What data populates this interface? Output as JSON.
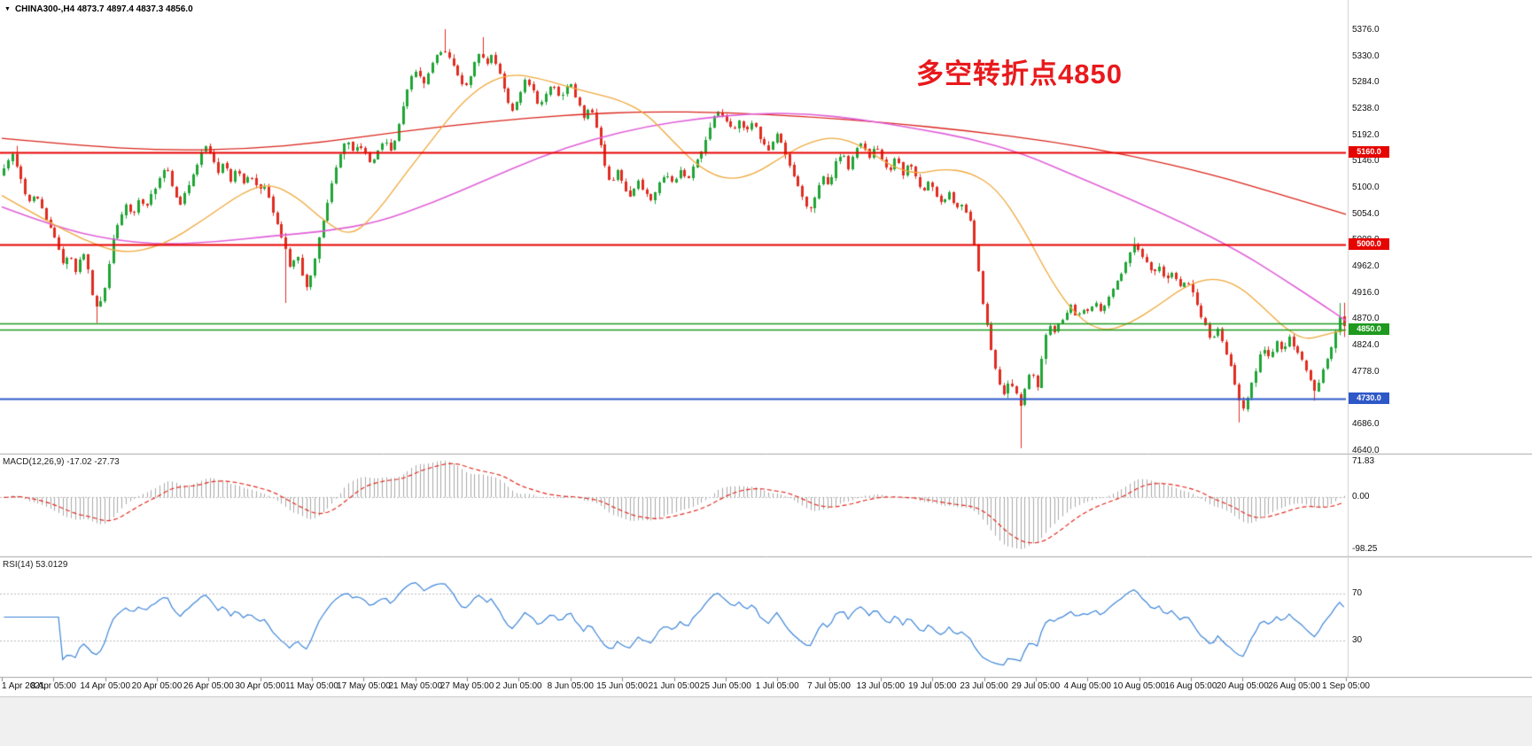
{
  "header": {
    "collapse_icon": "▼",
    "symbol_info": "CHINA300-,H4 4873.7 4897.4 4837.3 4856.0"
  },
  "annotation": {
    "text": "多空转折点4850"
  },
  "price_scale": {
    "labels": [
      "5376.0",
      "5330.0",
      "5284.0",
      "5238.0",
      "5192.0",
      "5146.0",
      "5100.0",
      "5054.0",
      "5008.0",
      "4962.0",
      "4916.0",
      "4870.0",
      "4824.0",
      "4778.0",
      "4732.0",
      "4686.0",
      "4640.0"
    ]
  },
  "hlines": [
    {
      "price": 5160.0,
      "label": "5160.0",
      "color": "#e60400",
      "width": 2
    },
    {
      "price": 5000.0,
      "label": "5000.0",
      "color": "#e60400",
      "width": 2
    },
    {
      "price": 4862.0,
      "label": null,
      "color": "#1f9a1f",
      "width": 1.4
    },
    {
      "price": 4850.0,
      "label": "4850.0",
      "color": "#1f9a1f",
      "width": 1.4
    },
    {
      "price": 4730.0,
      "label": "4730.0",
      "color": "#2e58c8",
      "width": 2
    }
  ],
  "macd_panel": {
    "label": "MACD(12,26,9) -17.02 -27.73",
    "scale_labels": [
      "71.83",
      "0.00",
      "-98.25"
    ]
  },
  "rsi_panel": {
    "label": "RSI(14) 53.0129",
    "level_labels": [
      "70",
      "30"
    ],
    "levels": [
      70,
      30
    ]
  },
  "time_axis": {
    "labels": [
      "1 Apr 2021",
      "8 Apr 05:00",
      "14 Apr 05:00",
      "20 Apr 05:00",
      "26 Apr 05:00",
      "30 Apr 05:00",
      "11 May 05:00",
      "17 May 05:00",
      "21 May 05:00",
      "27 May 05:00",
      "2 Jun 05:00",
      "8 Jun 05:00",
      "15 Jun 05:00",
      "21 Jun 05:00",
      "25 Jun 05:00",
      "1 Jul 05:00",
      "7 Jul 05:00",
      "13 Jul 05:00",
      "19 Jul 05:00",
      "23 Jul 05:00",
      "29 Jul 05:00",
      "4 Aug 05:00",
      "10 Aug 05:00",
      "16 Aug 05:00",
      "20 Aug 05:00",
      "26 Aug 05:00",
      "1 Sep 05:00"
    ]
  },
  "colors": {
    "bull": "#1fa535",
    "bear": "#e02c21",
    "ma_slow_red": "#d9241b",
    "ma_fast_orange": "#efa93d",
    "ma_medium_magenta": "#e060d8",
    "macd_hist": "#a9a9a9",
    "macd_signal": "#e02c21",
    "rsi_line": "#3d85d8",
    "level_dash": "#b9b9b9",
    "separator": "#a6a6a6",
    "annotation": "#e8191c",
    "footer_bg": "#f0f0f0",
    "axis_text": "#111111"
  },
  "chart_data": {
    "type": "candlestick",
    "symbol": "CHINA300-",
    "timeframe": "H4",
    "quote": {
      "open": 4873.7,
      "high": 4897.4,
      "low": 4837.3,
      "close": 4856.0
    },
    "title_note": "多空转折点4850",
    "x_range": {
      "start": "1 Apr 2021",
      "end": "1 Sep 2021 05:00"
    },
    "price_range": {
      "min": 4635,
      "max": 5396
    },
    "horizontal_levels": [
      5160.0,
      5000.0,
      4862.0,
      4850.0,
      4730.0
    ],
    "candle_count": 320,
    "close_path": [
      [
        0.0,
        5120
      ],
      [
        0.004,
        5148
      ],
      [
        0.008,
        5160
      ],
      [
        0.012,
        5128
      ],
      [
        0.016,
        5095
      ],
      [
        0.02,
        5075
      ],
      [
        0.025,
        5085
      ],
      [
        0.03,
        5060
      ],
      [
        0.035,
        5030
      ],
      [
        0.04,
        5005
      ],
      [
        0.045,
        4965
      ],
      [
        0.05,
        4985
      ],
      [
        0.055,
        4950
      ],
      [
        0.06,
        4990
      ],
      [
        0.065,
        4945
      ],
      [
        0.068,
        4895
      ],
      [
        0.072,
        4885
      ],
      [
        0.077,
        4925
      ],
      [
        0.082,
        5000
      ],
      [
        0.087,
        5045
      ],
      [
        0.092,
        5070
      ],
      [
        0.097,
        5050
      ],
      [
        0.102,
        5080
      ],
      [
        0.107,
        5060
      ],
      [
        0.112,
        5092
      ],
      [
        0.117,
        5112
      ],
      [
        0.122,
        5135
      ],
      [
        0.127,
        5100
      ],
      [
        0.132,
        5062
      ],
      [
        0.137,
        5092
      ],
      [
        0.142,
        5122
      ],
      [
        0.147,
        5152
      ],
      [
        0.152,
        5172
      ],
      [
        0.156,
        5155
      ],
      [
        0.16,
        5122
      ],
      [
        0.165,
        5142
      ],
      [
        0.17,
        5112
      ],
      [
        0.175,
        5132
      ],
      [
        0.18,
        5102
      ],
      [
        0.185,
        5122
      ],
      [
        0.19,
        5095
      ],
      [
        0.196,
        5105
      ],
      [
        0.201,
        5062
      ],
      [
        0.206,
        5022
      ],
      [
        0.211,
        4988
      ],
      [
        0.215,
        4952
      ],
      [
        0.219,
        4985
      ],
      [
        0.223,
        4952
      ],
      [
        0.227,
        4922
      ],
      [
        0.231,
        4958
      ],
      [
        0.236,
        5010
      ],
      [
        0.241,
        5062
      ],
      [
        0.246,
        5112
      ],
      [
        0.251,
        5152
      ],
      [
        0.256,
        5182
      ],
      [
        0.261,
        5162
      ],
      [
        0.265,
        5175
      ],
      [
        0.27,
        5158
      ],
      [
        0.275,
        5138
      ],
      [
        0.28,
        5162
      ],
      [
        0.285,
        5182
      ],
      [
        0.29,
        5162
      ],
      [
        0.295,
        5205
      ],
      [
        0.3,
        5262
      ],
      [
        0.305,
        5292
      ],
      [
        0.309,
        5302
      ],
      [
        0.314,
        5278
      ],
      [
        0.319,
        5312
      ],
      [
        0.324,
        5332
      ],
      [
        0.329,
        5342
      ],
      [
        0.334,
        5318
      ],
      [
        0.339,
        5298
      ],
      [
        0.344,
        5272
      ],
      [
        0.348,
        5292
      ],
      [
        0.352,
        5322
      ],
      [
        0.356,
        5342
      ],
      [
        0.36,
        5312
      ],
      [
        0.365,
        5332
      ],
      [
        0.37,
        5298
      ],
      [
        0.375,
        5258
      ],
      [
        0.38,
        5232
      ],
      [
        0.385,
        5262
      ],
      [
        0.39,
        5292
      ],
      [
        0.395,
        5268
      ],
      [
        0.4,
        5240
      ],
      [
        0.405,
        5262
      ],
      [
        0.41,
        5282
      ],
      [
        0.415,
        5252
      ],
      [
        0.419,
        5272
      ],
      [
        0.423,
        5282
      ],
      [
        0.428,
        5252
      ],
      [
        0.433,
        5222
      ],
      [
        0.438,
        5242
      ],
      [
        0.443,
        5198
      ],
      [
        0.448,
        5142
      ],
      [
        0.453,
        5102
      ],
      [
        0.458,
        5132
      ],
      [
        0.462,
        5102
      ],
      [
        0.468,
        5082
      ],
      [
        0.473,
        5112
      ],
      [
        0.478,
        5092
      ],
      [
        0.483,
        5072
      ],
      [
        0.488,
        5102
      ],
      [
        0.494,
        5122
      ],
      [
        0.5,
        5102
      ],
      [
        0.505,
        5132
      ],
      [
        0.51,
        5112
      ],
      [
        0.515,
        5142
      ],
      [
        0.52,
        5162
      ],
      [
        0.525,
        5192
      ],
      [
        0.53,
        5222
      ],
      [
        0.534,
        5232
      ],
      [
        0.538,
        5218
      ],
      [
        0.544,
        5198
      ],
      [
        0.549,
        5215
      ],
      [
        0.554,
        5195
      ],
      [
        0.559,
        5212
      ],
      [
        0.564,
        5185
      ],
      [
        0.57,
        5165
      ],
      [
        0.577,
        5192
      ],
      [
        0.581,
        5168
      ],
      [
        0.586,
        5138
      ],
      [
        0.591,
        5108
      ],
      [
        0.596,
        5078
      ],
      [
        0.601,
        5058
      ],
      [
        0.606,
        5092
      ],
      [
        0.611,
        5122
      ],
      [
        0.615,
        5102
      ],
      [
        0.62,
        5142
      ],
      [
        0.625,
        5162
      ],
      [
        0.63,
        5132
      ],
      [
        0.635,
        5162
      ],
      [
        0.64,
        5182
      ],
      [
        0.645,
        5152
      ],
      [
        0.65,
        5172
      ],
      [
        0.654,
        5148
      ],
      [
        0.66,
        5128
      ],
      [
        0.665,
        5152
      ],
      [
        0.67,
        5122
      ],
      [
        0.675,
        5142
      ],
      [
        0.68,
        5112
      ],
      [
        0.685,
        5092
      ],
      [
        0.69,
        5112
      ],
      [
        0.695,
        5088
      ],
      [
        0.7,
        5068
      ],
      [
        0.705,
        5092
      ],
      [
        0.71,
        5058
      ],
      [
        0.715,
        5072
      ],
      [
        0.72,
        5042
      ],
      [
        0.725,
        4982
      ],
      [
        0.729,
        4902
      ],
      [
        0.733,
        4858
      ],
      [
        0.737,
        4802
      ],
      [
        0.741,
        4758
      ],
      [
        0.745,
        4738
      ],
      [
        0.75,
        4762
      ],
      [
        0.754,
        4742
      ],
      [
        0.758,
        4718
      ],
      [
        0.762,
        4752
      ],
      [
        0.766,
        4782
      ],
      [
        0.77,
        4742
      ],
      [
        0.774,
        4812
      ],
      [
        0.778,
        4862
      ],
      [
        0.782,
        4845
      ],
      [
        0.786,
        4862
      ],
      [
        0.79,
        4872
      ],
      [
        0.795,
        4892
      ],
      [
        0.8,
        4868
      ],
      [
        0.804,
        4888
      ],
      [
        0.808,
        4878
      ],
      [
        0.813,
        4898
      ],
      [
        0.818,
        4882
      ],
      [
        0.823,
        4908
      ],
      [
        0.828,
        4928
      ],
      [
        0.833,
        4952
      ],
      [
        0.838,
        4982
      ],
      [
        0.843,
        5002
      ],
      [
        0.846,
        4988
      ],
      [
        0.851,
        4968
      ],
      [
        0.856,
        4948
      ],
      [
        0.861,
        4962
      ],
      [
        0.866,
        4938
      ],
      [
        0.871,
        4952
      ],
      [
        0.876,
        4928
      ],
      [
        0.881,
        4938
      ],
      [
        0.885,
        4918
      ],
      [
        0.89,
        4888
      ],
      [
        0.895,
        4858
      ],
      [
        0.9,
        4828
      ],
      [
        0.905,
        4852
      ],
      [
        0.91,
        4818
      ],
      [
        0.915,
        4778
      ],
      [
        0.919,
        4732
      ],
      [
        0.923,
        4712
      ],
      [
        0.928,
        4742
      ],
      [
        0.933,
        4782
      ],
      [
        0.938,
        4822
      ],
      [
        0.943,
        4798
      ],
      [
        0.948,
        4832
      ],
      [
        0.953,
        4812
      ],
      [
        0.958,
        4842
      ],
      [
        0.962,
        4818
      ],
      [
        0.967,
        4798
      ],
      [
        0.972,
        4768
      ],
      [
        0.977,
        4744
      ],
      [
        0.982,
        4772
      ],
      [
        0.987,
        4802
      ],
      [
        0.992,
        4842
      ],
      [
        0.997,
        4884
      ],
      [
        1.0,
        4856
      ]
    ],
    "spikes": [
      {
        "x": 0.008,
        "price": 5172
      },
      {
        "x": 0.07,
        "price": 4862
      },
      {
        "x": 0.211,
        "price": 4897
      },
      {
        "x": 0.329,
        "price": 5376
      },
      {
        "x": 0.356,
        "price": 5362
      },
      {
        "x": 0.758,
        "price": 4643
      },
      {
        "x": 0.843,
        "price": 5012
      },
      {
        "x": 0.923,
        "price": 4688
      },
      {
        "x": 0.977,
        "price": 4726
      },
      {
        "x": 0.997,
        "price": 4897
      }
    ],
    "moving_averages": [
      {
        "name": "ma-slow",
        "color_key": "ma_slow_red",
        "points": [
          [
            0,
            5185
          ],
          [
            0.06,
            5172
          ],
          [
            0.12,
            5164
          ],
          [
            0.18,
            5166
          ],
          [
            0.24,
            5178
          ],
          [
            0.3,
            5198
          ],
          [
            0.36,
            5214
          ],
          [
            0.42,
            5226
          ],
          [
            0.48,
            5232
          ],
          [
            0.54,
            5230
          ],
          [
            0.6,
            5223
          ],
          [
            0.66,
            5212
          ],
          [
            0.72,
            5198
          ],
          [
            0.78,
            5180
          ],
          [
            0.84,
            5155
          ],
          [
            0.9,
            5122
          ],
          [
            0.95,
            5088
          ],
          [
            1.0,
            5052
          ]
        ]
      },
      {
        "name": "ma-medium",
        "color_key": "ma_medium_magenta",
        "points": [
          [
            0,
            5065
          ],
          [
            0.04,
            5030
          ],
          [
            0.08,
            5008
          ],
          [
            0.12,
            4999
          ],
          [
            0.16,
            5004
          ],
          [
            0.2,
            5014
          ],
          [
            0.24,
            5022
          ],
          [
            0.28,
            5038
          ],
          [
            0.32,
            5072
          ],
          [
            0.36,
            5112
          ],
          [
            0.4,
            5152
          ],
          [
            0.44,
            5184
          ],
          [
            0.48,
            5206
          ],
          [
            0.52,
            5220
          ],
          [
            0.56,
            5229
          ],
          [
            0.6,
            5228
          ],
          [
            0.64,
            5218
          ],
          [
            0.68,
            5202
          ],
          [
            0.72,
            5185
          ],
          [
            0.76,
            5158
          ],
          [
            0.8,
            5118
          ],
          [
            0.84,
            5078
          ],
          [
            0.88,
            5036
          ],
          [
            0.92,
            4988
          ],
          [
            0.95,
            4944
          ],
          [
            0.98,
            4898
          ],
          [
            1.0,
            4866
          ]
        ]
      },
      {
        "name": "ma-fast",
        "color_key": "ma_fast_orange",
        "points": [
          [
            0,
            5085
          ],
          [
            0.03,
            5045
          ],
          [
            0.06,
            5008
          ],
          [
            0.09,
            4982
          ],
          [
            0.12,
            4998
          ],
          [
            0.15,
            5042
          ],
          [
            0.18,
            5092
          ],
          [
            0.2,
            5106
          ],
          [
            0.22,
            5082
          ],
          [
            0.24,
            5040
          ],
          [
            0.26,
            5012
          ],
          [
            0.28,
            5058
          ],
          [
            0.3,
            5122
          ],
          [
            0.32,
            5182
          ],
          [
            0.34,
            5242
          ],
          [
            0.36,
            5282
          ],
          [
            0.38,
            5298
          ],
          [
            0.4,
            5290
          ],
          [
            0.42,
            5276
          ],
          [
            0.44,
            5264
          ],
          [
            0.46,
            5252
          ],
          [
            0.48,
            5228
          ],
          [
            0.5,
            5178
          ],
          [
            0.52,
            5132
          ],
          [
            0.54,
            5112
          ],
          [
            0.56,
            5122
          ],
          [
            0.58,
            5152
          ],
          [
            0.6,
            5178
          ],
          [
            0.62,
            5188
          ],
          [
            0.64,
            5172
          ],
          [
            0.66,
            5138
          ],
          [
            0.68,
            5122
          ],
          [
            0.7,
            5132
          ],
          [
            0.72,
            5126
          ],
          [
            0.74,
            5098
          ],
          [
            0.76,
            5028
          ],
          [
            0.78,
            4938
          ],
          [
            0.8,
            4872
          ],
          [
            0.82,
            4846
          ],
          [
            0.84,
            4862
          ],
          [
            0.86,
            4892
          ],
          [
            0.88,
            4926
          ],
          [
            0.9,
            4942
          ],
          [
            0.92,
            4928
          ],
          [
            0.94,
            4886
          ],
          [
            0.955,
            4852
          ],
          [
            0.97,
            4832
          ],
          [
            0.985,
            4842
          ],
          [
            1.0,
            4850
          ]
        ]
      }
    ],
    "indicators": [
      {
        "name": "MACD",
        "params": "12,26,9",
        "display_values": "-17.02 -27.73",
        "scale_max": 71.83,
        "scale_min": -98.25
      },
      {
        "name": "RSI",
        "params": "14",
        "display_value": 53.0129,
        "levels": [
          70,
          30
        ]
      }
    ]
  }
}
